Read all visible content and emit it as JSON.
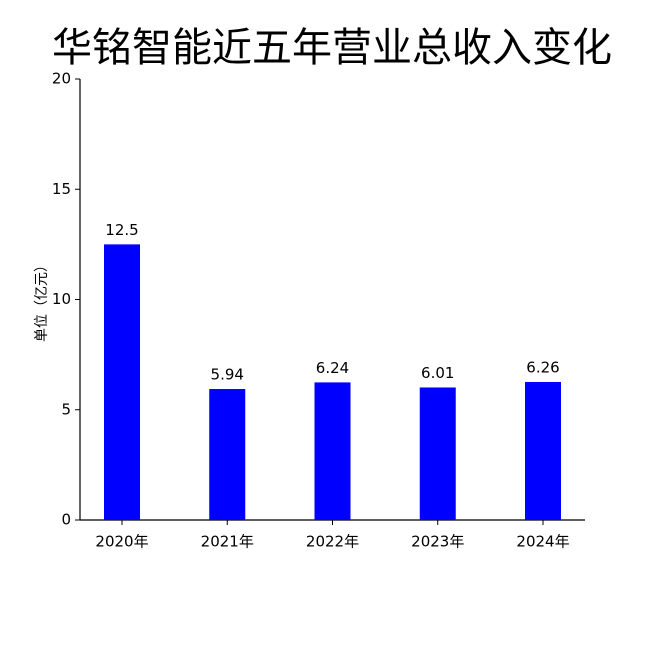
{
  "chart_data": {
    "type": "bar",
    "title": "华铭智能近五年营业总收入变化",
    "y_label": "单位（亿元）",
    "categories": [
      "2020年",
      "2021年",
      "2022年",
      "2023年",
      "2024年"
    ],
    "values": [
      12.5,
      5.94,
      6.24,
      6.01,
      6.26
    ],
    "color": "#0000ff",
    "ylim": [
      0,
      20
    ],
    "yticks": [
      0,
      5,
      10,
      15,
      20
    ],
    "grid": false
  }
}
